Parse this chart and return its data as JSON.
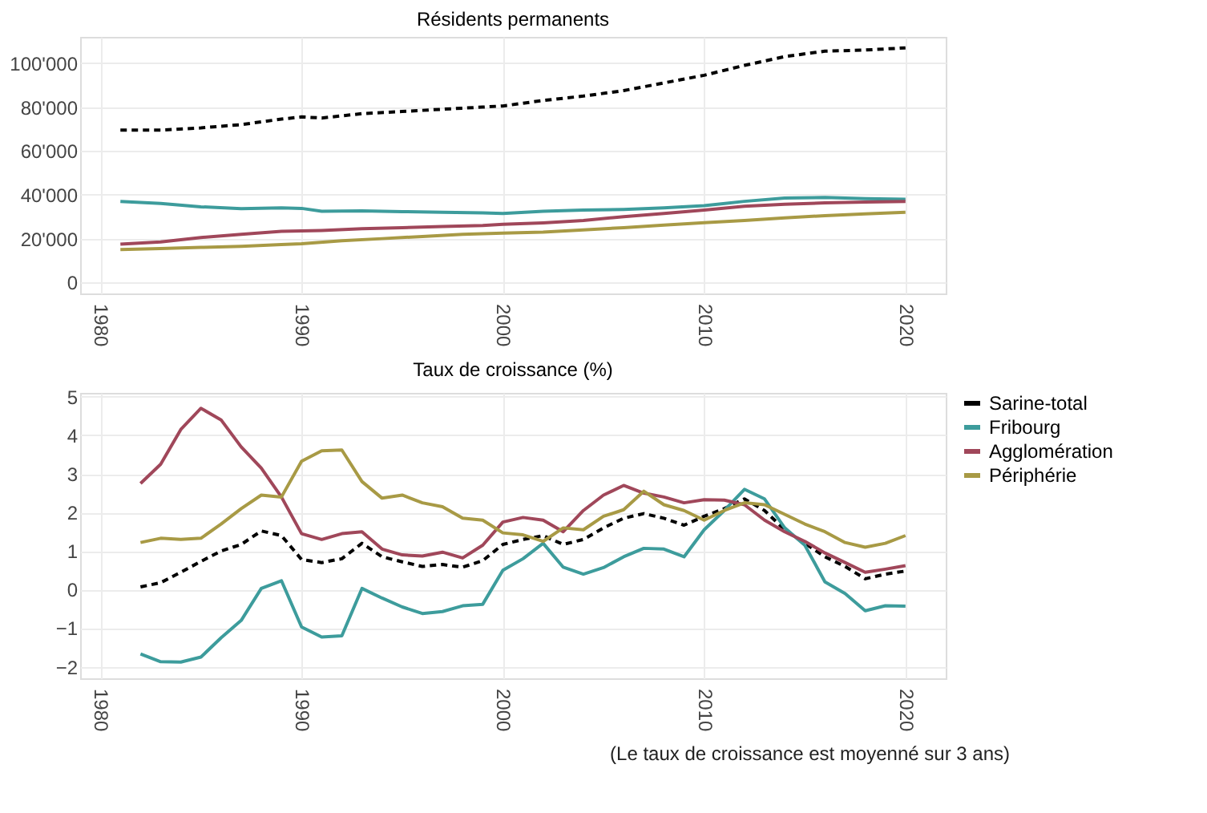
{
  "chart_data": [
    {
      "type": "line",
      "title": "Résidents permanents",
      "xlim": [
        1979,
        2022
      ],
      "xticks": [
        1980,
        1990,
        2000,
        2010,
        2020
      ],
      "ylim": [
        -5000,
        112000
      ],
      "yticks": [
        0,
        {
          "value": 20000,
          "label": "20'000"
        },
        {
          "value": 40000,
          "label": "40'000"
        },
        {
          "value": 60000,
          "label": "60'000"
        },
        {
          "value": 80000,
          "label": "80'000"
        },
        {
          "value": 100000,
          "label": "100'000"
        }
      ],
      "grid": true,
      "series": [
        {
          "color": "#000000",
          "line_style": "dashed",
          "x": [
            1981,
            1983,
            1985,
            1987,
            1989,
            1990,
            1991,
            1993,
            1995,
            1997,
            1999,
            2000,
            2002,
            2004,
            2006,
            2008,
            2010,
            2012,
            2014,
            2016,
            2018,
            2020
          ],
          "values": [
            69500,
            69500,
            70500,
            72000,
            74500,
            75500,
            75000,
            77000,
            78000,
            79000,
            80000,
            80500,
            83000,
            85000,
            87500,
            91000,
            94500,
            99000,
            103000,
            105500,
            106000,
            107000
          ]
        },
        {
          "color": "#3d9c9c",
          "line_style": "solid",
          "x": [
            1981,
            1983,
            1985,
            1987,
            1989,
            1990,
            1991,
            1993,
            1995,
            1997,
            1999,
            2000,
            2002,
            2004,
            2006,
            2008,
            2010,
            2012,
            2014,
            2016,
            2018,
            2020
          ],
          "values": [
            37000,
            36000,
            34500,
            33700,
            34000,
            33800,
            32500,
            32700,
            32300,
            32000,
            31700,
            31500,
            32500,
            33000,
            33300,
            34000,
            35000,
            37000,
            38500,
            38800,
            38200,
            38000
          ]
        },
        {
          "color": "#a0475a",
          "line_style": "solid",
          "x": [
            1981,
            1983,
            1985,
            1987,
            1989,
            1991,
            1993,
            1995,
            1997,
            1999,
            2000,
            2002,
            2004,
            2006,
            2008,
            2010,
            2012,
            2014,
            2016,
            2018,
            2020
          ],
          "values": [
            17500,
            18500,
            20500,
            22000,
            23300,
            23700,
            24500,
            25000,
            25500,
            26000,
            26500,
            27200,
            28300,
            30000,
            31500,
            33000,
            34800,
            35700,
            36300,
            36700,
            37000
          ]
        },
        {
          "color": "#a89a45",
          "line_style": "solid",
          "x": [
            1981,
            1983,
            1985,
            1987,
            1989,
            1990,
            1992,
            1994,
            1996,
            1998,
            2000,
            2002,
            2004,
            2006,
            2008,
            2010,
            2012,
            2014,
            2016,
            2018,
            2020
          ],
          "values": [
            15000,
            15500,
            16000,
            16500,
            17300,
            17700,
            19000,
            20000,
            21000,
            22000,
            22500,
            23000,
            24000,
            25000,
            26200,
            27300,
            28300,
            29500,
            30500,
            31300,
            32000
          ]
        }
      ]
    },
    {
      "type": "line",
      "title": "Taux de croissance (%)",
      "xlim": [
        1979,
        2022
      ],
      "xticks": [
        1980,
        1990,
        2000,
        2010,
        2020
      ],
      "ylim": [
        -2.3,
        5.1
      ],
      "yticks": [
        -2,
        -1,
        0,
        1,
        2,
        3,
        4,
        5
      ],
      "grid": true,
      "legend": "right",
      "annotations": [
        "(Le taux de croissance est moyenné sur 3 ans)"
      ],
      "x": [
        1982,
        1983,
        1984,
        1985,
        1986,
        1987,
        1988,
        1989,
        1990,
        1991,
        1992,
        1993,
        1994,
        1995,
        1996,
        1997,
        1998,
        1999,
        2000,
        2001,
        2002,
        2003,
        2004,
        2005,
        2006,
        2007,
        2008,
        2009,
        2010,
        2011,
        2012,
        2013,
        2014,
        2015,
        2016,
        2017,
        2018,
        2019,
        2020
      ],
      "series": [
        {
          "name": "Sarine-total",
          "color": "#000000",
          "line_style": "dashed",
          "values": [
            0.07,
            0.18,
            0.45,
            0.73,
            1.0,
            1.17,
            1.52,
            1.4,
            0.78,
            0.7,
            0.8,
            1.2,
            0.85,
            0.72,
            0.6,
            0.65,
            0.58,
            0.75,
            1.17,
            1.3,
            1.4,
            1.17,
            1.3,
            1.6,
            1.85,
            1.97,
            1.85,
            1.67,
            1.9,
            2.1,
            2.35,
            2.05,
            1.55,
            1.2,
            0.85,
            0.6,
            0.28,
            0.4,
            0.48
          ]
        },
        {
          "name": "Fribourg",
          "color": "#3d9c9c",
          "line_style": "solid",
          "values": [
            -1.67,
            -1.87,
            -1.88,
            -1.75,
            -1.25,
            -0.8,
            0.03,
            0.23,
            -0.97,
            -1.23,
            -1.2,
            0.03,
            -0.22,
            -0.45,
            -0.62,
            -0.57,
            -0.42,
            -0.38,
            0.5,
            0.8,
            1.2,
            0.58,
            0.4,
            0.57,
            0.85,
            1.07,
            1.05,
            0.85,
            1.55,
            2.05,
            2.6,
            2.35,
            1.6,
            1.15,
            0.2,
            -0.1,
            -0.55,
            -0.42,
            -0.43
          ]
        },
        {
          "name": "Agglomération",
          "color": "#a0475a",
          "line_style": "solid",
          "values": [
            2.75,
            3.25,
            4.15,
            4.7,
            4.4,
            3.7,
            3.15,
            2.4,
            1.45,
            1.3,
            1.45,
            1.5,
            1.05,
            0.9,
            0.87,
            0.97,
            0.82,
            1.15,
            1.75,
            1.87,
            1.8,
            1.5,
            2.05,
            2.45,
            2.7,
            2.5,
            2.4,
            2.25,
            2.33,
            2.32,
            2.2,
            1.8,
            1.5,
            1.25,
            0.95,
            0.7,
            0.45,
            0.53,
            0.62
          ]
        },
        {
          "name": "Périphérie",
          "color": "#a89a45",
          "line_style": "solid",
          "values": [
            1.22,
            1.33,
            1.3,
            1.33,
            1.7,
            2.1,
            2.45,
            2.4,
            3.33,
            3.6,
            3.62,
            2.8,
            2.37,
            2.45,
            2.25,
            2.15,
            1.85,
            1.8,
            1.47,
            1.42,
            1.25,
            1.6,
            1.55,
            1.9,
            2.07,
            2.55,
            2.2,
            2.05,
            1.8,
            2.05,
            2.25,
            2.2,
            1.95,
            1.7,
            1.5,
            1.22,
            1.1,
            1.2,
            1.4
          ]
        }
      ]
    }
  ]
}
